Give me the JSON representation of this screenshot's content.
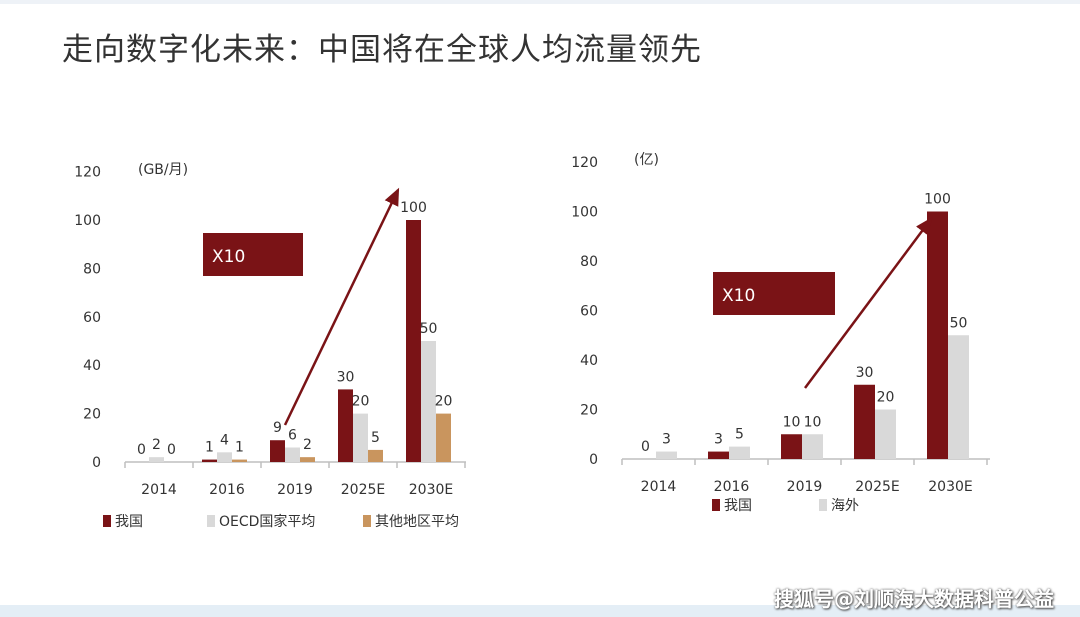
{
  "page": {
    "title": "走向数字化未来：中国将在全球人均流量领先",
    "watermark": "搜狐号@刘顺海大数据科普公益"
  },
  "colors": {
    "china": "#7a1316",
    "oecd": "#d9d9d9",
    "other": "#c9955e",
    "overseas": "#d9d9d9",
    "axis": "#bfbfbf",
    "text": "#333333"
  },
  "chart_data": [
    {
      "type": "bar",
      "unit_label": "(GB/月)",
      "categories": [
        "2014",
        "2016",
        "2019",
        "2025E",
        "2030E"
      ],
      "series": [
        {
          "name": "我国",
          "values": [
            0,
            1,
            9,
            30,
            100
          ]
        },
        {
          "name": "OECD国家平均",
          "values": [
            2,
            4,
            6,
            20,
            50
          ]
        },
        {
          "name": "其他地区平均",
          "values": [
            0,
            1,
            2,
            5,
            20
          ]
        }
      ],
      "ylim": [
        0,
        120
      ],
      "yticks": [
        "0",
        "20",
        "40",
        "60",
        "80",
        "100",
        "120"
      ],
      "annotation": "X10",
      "grid": false,
      "legend": "bottom"
    },
    {
      "type": "bar",
      "unit_label": "(亿)",
      "categories": [
        "2014",
        "2016",
        "2019",
        "2025E",
        "2030E"
      ],
      "series": [
        {
          "name": "我国",
          "values": [
            0,
            3,
            10,
            30,
            100
          ]
        },
        {
          "name": "海外",
          "values": [
            3,
            5,
            10,
            20,
            50
          ]
        }
      ],
      "ylim": [
        0,
        120
      ],
      "yticks": [
        "0",
        "20",
        "40",
        "60",
        "80",
        "100",
        "120"
      ],
      "annotation": "X10",
      "grid": false,
      "legend": "bottom"
    }
  ]
}
